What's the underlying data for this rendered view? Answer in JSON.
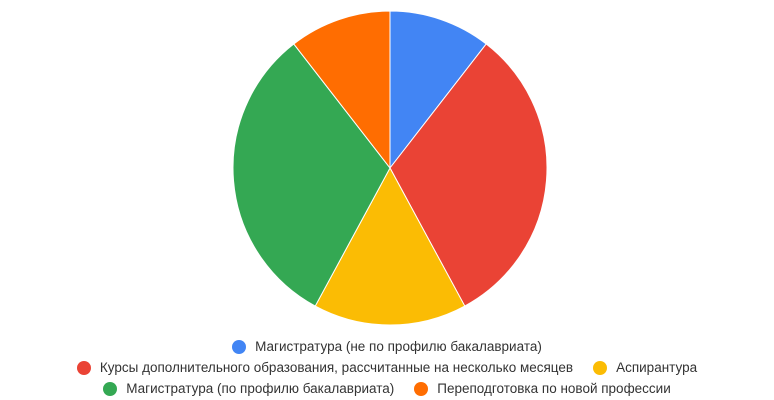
{
  "chart_data": {
    "type": "pie",
    "slices": [
      {
        "label": "Магистратура (не по профилю бакалавриата)",
        "value": 10.5,
        "color": "#4285F4"
      },
      {
        "label": "Курсы дополнительного образования, рассчитанные на несколько месяцев",
        "value": 31.6,
        "color": "#EA4335"
      },
      {
        "label": "Аспирантура",
        "value": 15.8,
        "color": "#FBBC04"
      },
      {
        "label": "Магистратура (по профилю бакалавриата)",
        "value": 31.6,
        "color": "#34A853"
      },
      {
        "label": "Переподготовка по новой профессии",
        "value": 10.5,
        "color": "#FF6D01"
      }
    ],
    "legend_position": "bottom"
  }
}
